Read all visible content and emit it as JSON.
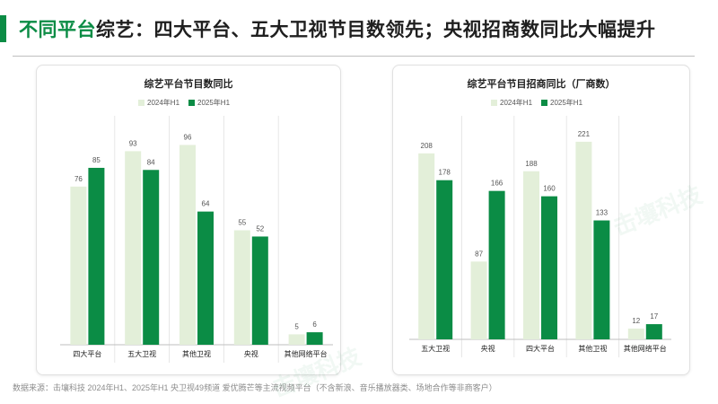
{
  "header": {
    "title_highlight": "不同平台",
    "title_rest": "综艺：四大平台、五大卫视节目数领先；央视招商数同比大幅提升"
  },
  "footnote": "数据来源：击壤科技 2024年H1、2025年H1 央卫视49频道  爱优腾芒等主流视频平台（不含新浪、音乐播放器类、场地合作等非商客户）",
  "watermark": "击壤科技",
  "colors": {
    "accent": "#0b8c45",
    "series_2024": "#e3efd9",
    "series_2025": "#0b8c45"
  },
  "chart_data": [
    {
      "type": "bar",
      "title": "综艺平台节目数同比",
      "categories": [
        "四大平台",
        "五大卫视",
        "其他卫视",
        "央视",
        "其他网络平台"
      ],
      "series": [
        {
          "name": "2024年H1",
          "values": [
            76,
            93,
            96,
            55,
            5
          ]
        },
        {
          "name": "2025年H1",
          "values": [
            85,
            84,
            64,
            52,
            6
          ]
        }
      ],
      "ylim": [
        0,
        110
      ],
      "grid": false,
      "legend_position": "top-center"
    },
    {
      "type": "bar",
      "title": "综艺平台节目招商同比（厂商数）",
      "categories": [
        "五大卫视",
        "央视",
        "四大平台",
        "其他卫视",
        "其他网络平台"
      ],
      "series": [
        {
          "name": "2024年H1",
          "values": [
            208,
            87,
            188,
            221,
            12
          ]
        },
        {
          "name": "2025年H1",
          "values": [
            178,
            166,
            160,
            133,
            17
          ]
        }
      ],
      "ylim": [
        0,
        250
      ],
      "grid": false,
      "legend_position": "top-center"
    }
  ]
}
